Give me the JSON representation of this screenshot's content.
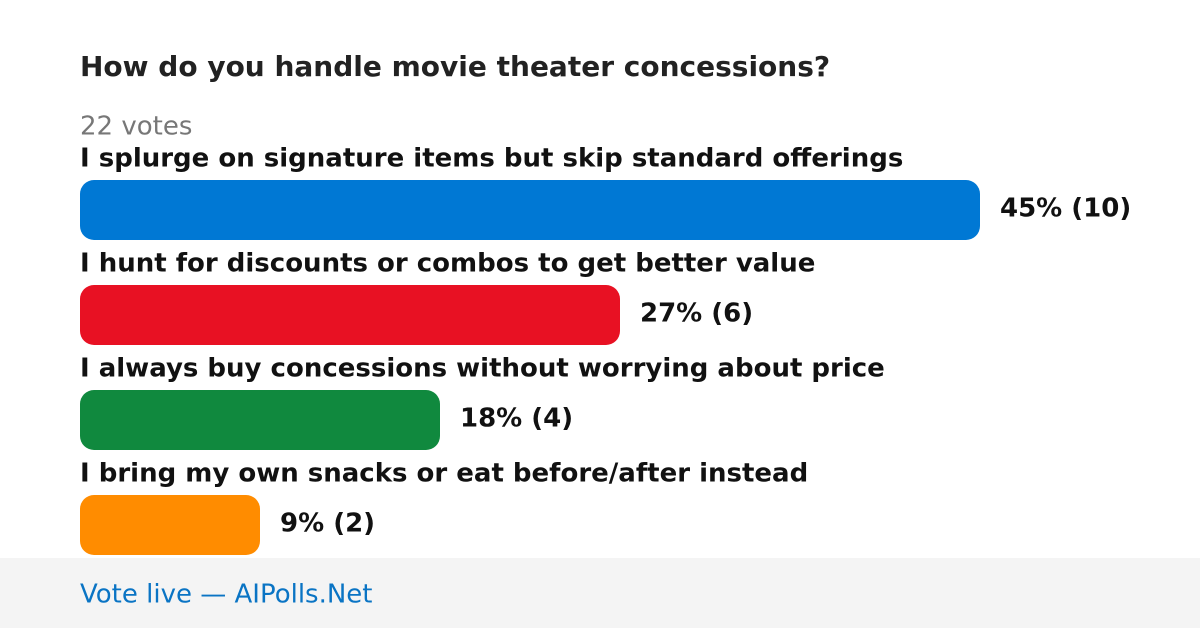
{
  "chart_data": {
    "type": "bar",
    "title": "How do you handle movie theater concessions?",
    "subtitle": "22 votes",
    "categories": [
      "I splurge on signature items but skip standard offerings",
      "I hunt for discounts or combos to get better value",
      "I always buy concessions without worrying about price",
      "I bring my own snacks or eat before/after instead"
    ],
    "values": [
      45,
      27,
      18,
      9
    ],
    "value_labels": [
      "45% (10)",
      "27% (6)",
      "18% (4)",
      "9% (2)"
    ],
    "colors": [
      "#0078d4",
      "#e81123",
      "#10893e",
      "#ff8c00"
    ]
  },
  "footer": "Vote live — AIPolls.Net"
}
